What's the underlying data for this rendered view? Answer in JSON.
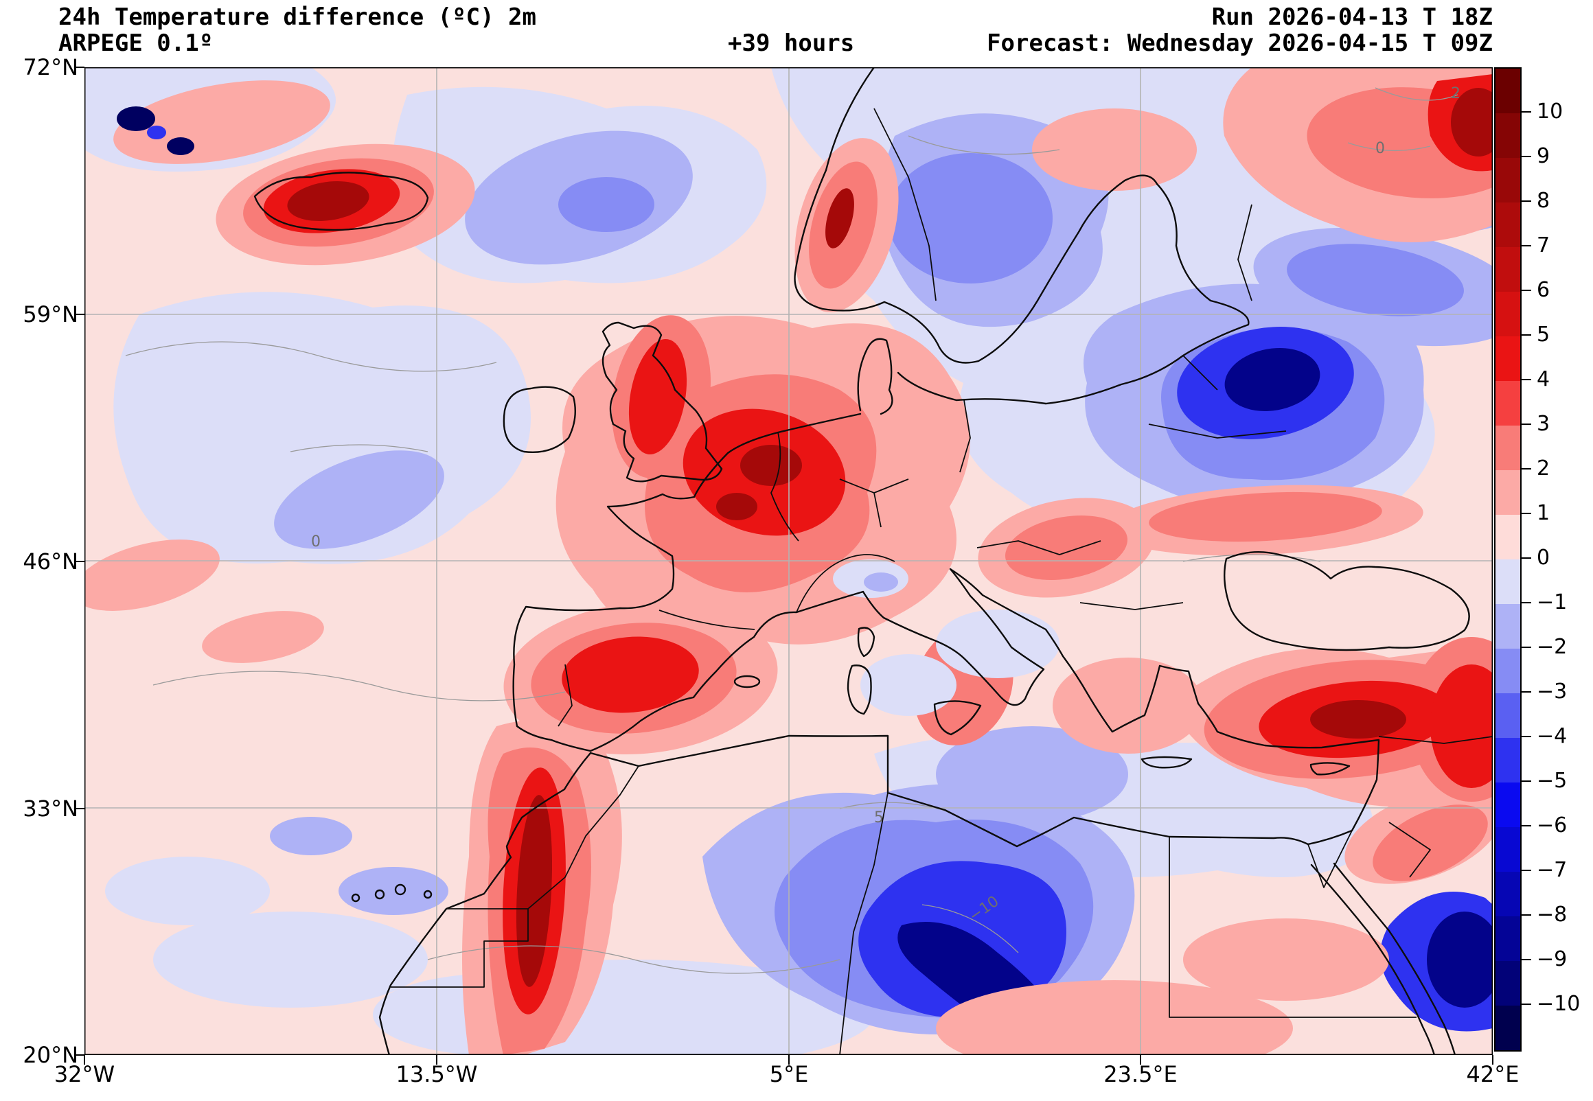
{
  "header": {
    "title": "24h Temperature difference (ºC) 2m",
    "model": "ARPEGE 0.1º",
    "lead_time": "+39 hours",
    "run": "Run 2026-04-13 T 18Z",
    "forecast": "Forecast: Wednesday 2026-04-15 T 09Z"
  },
  "axes": {
    "lat_ticks": [
      "72°N",
      "59°N",
      "46°N",
      "33°N",
      "20°N"
    ],
    "lon_ticks": [
      "32°W",
      "13.5°W",
      "5°E",
      "23.5°E",
      "42°E"
    ]
  },
  "colorbar": {
    "tick_labels": [
      "10",
      "9",
      "8",
      "7",
      "6",
      "5",
      "4",
      "3",
      "2",
      "1",
      "0",
      "−1",
      "−2",
      "−3",
      "−4",
      "−5",
      "−6",
      "−7",
      "−8",
      "−9",
      "−10"
    ],
    "segments": [
      "#6b0000",
      "#850505",
      "#990808",
      "#ad0b0b",
      "#c10e0e",
      "#d61111",
      "#ea1414",
      "#f54040",
      "#f87c78",
      "#fcaaa6",
      "#fedcd9",
      "#dcdef8",
      "#aeb2f6",
      "#868cf4",
      "#5a60f2",
      "#2e32f0",
      "#0a0af0",
      "#0808d2",
      "#0606b4",
      "#040496",
      "#020278",
      "#00004e"
    ]
  },
  "map": {
    "contour_labels": [
      "2",
      "0",
      "0",
      "−10",
      "5"
    ]
  },
  "palette": {
    "bg": "#fbe0dd",
    "lav": "#dcdef8",
    "blue1": "#aeb2f6",
    "blue2": "#868cf4",
    "blue4": "#2e32f0",
    "navy": "#03038a",
    "navy2": "#000060",
    "pink1": "#fcaaa6",
    "red2": "#f87c78",
    "red4": "#ea1414",
    "red7": "#a50909"
  },
  "chart_data": {
    "type": "heatmap",
    "subtype": "filled-contour geographic map (equirectangular / PlateCarree)",
    "title": "24h Temperature difference (ºC) 2m",
    "model": "ARPEGE 0.1º",
    "lead_time": "+39 hours",
    "run": "Run 2026-04-13 T 18Z",
    "forecast": "Forecast: Wednesday 2026-04-15 T 09Z",
    "lon_range": [
      -32,
      42
    ],
    "lat_range": [
      20,
      72
    ],
    "lon_tick_values": [
      -32,
      -13.5,
      5,
      23.5,
      42
    ],
    "lat_tick_values": [
      72,
      59,
      46,
      33,
      20
    ],
    "grid": true,
    "colorbar": {
      "orientation": "vertical-right",
      "units": "°C",
      "levels": [
        10,
        9,
        8,
        7,
        6,
        5,
        4,
        3,
        2,
        1,
        0,
        -1,
        -2,
        -3,
        -4,
        -5,
        -6,
        -7,
        -8,
        -9,
        -10
      ],
      "extend": "both",
      "colors_top_to_bottom": [
        "#6b0000",
        "#850505",
        "#990808",
        "#ad0b0b",
        "#c10e0e",
        "#d61111",
        "#ea1414",
        "#f54040",
        "#f87c78",
        "#fcaaa6",
        "#fedcd9",
        "#dcdef8",
        "#aeb2f6",
        "#868cf4",
        "#5a60f2",
        "#2e32f0",
        "#0a0af0",
        "#0808d2",
        "#0606b4",
        "#040496",
        "#020278",
        "#00004e"
      ]
    },
    "features": [
      {
        "region": "Iceland",
        "anomaly": "warming",
        "approx_value_c": "+5 to +10"
      },
      {
        "region": "British Isles / France / Germany / central Europe",
        "anomaly": "warming",
        "approx_value_c": "+3 to +7"
      },
      {
        "region": "Iberian Peninsula",
        "anomaly": "warming",
        "approx_value_c": "+3 to +6"
      },
      {
        "region": "Morocco / Atlas mountains",
        "anomaly": "warming",
        "approx_value_c": "+5 to +10"
      },
      {
        "region": "Turkey / Anatolia / eastern Mediterranean coast",
        "anomaly": "warming",
        "approx_value_c": "+3 to +7"
      },
      {
        "region": "NW Russia and top-right corner",
        "anomaly": "warming",
        "approx_value_c": "+3 to +8"
      },
      {
        "region": "Norway west coast strip",
        "anomaly": "warming",
        "approx_value_c": "+2 to +5"
      },
      {
        "region": "Scandinavia / Baltic interior",
        "anomaly": "cooling",
        "approx_value_c": "-1 to -4"
      },
      {
        "region": "Baltics / Belarus / western Russia",
        "anomaly": "cooling",
        "approx_value_c": "-4 to -8"
      },
      {
        "region": "central Algeria / Libya (Sahara)",
        "anomaly": "cooling",
        "approx_value_c": "-5 to -10 and below"
      },
      {
        "region": "NW Arabia (bottom-right)",
        "anomaly": "cooling",
        "approx_value_c": "-4 to -8"
      },
      {
        "region": "North Atlantic (western half of domain)",
        "anomaly": "near zero",
        "approx_value_c": "-1 to +1"
      }
    ]
  }
}
